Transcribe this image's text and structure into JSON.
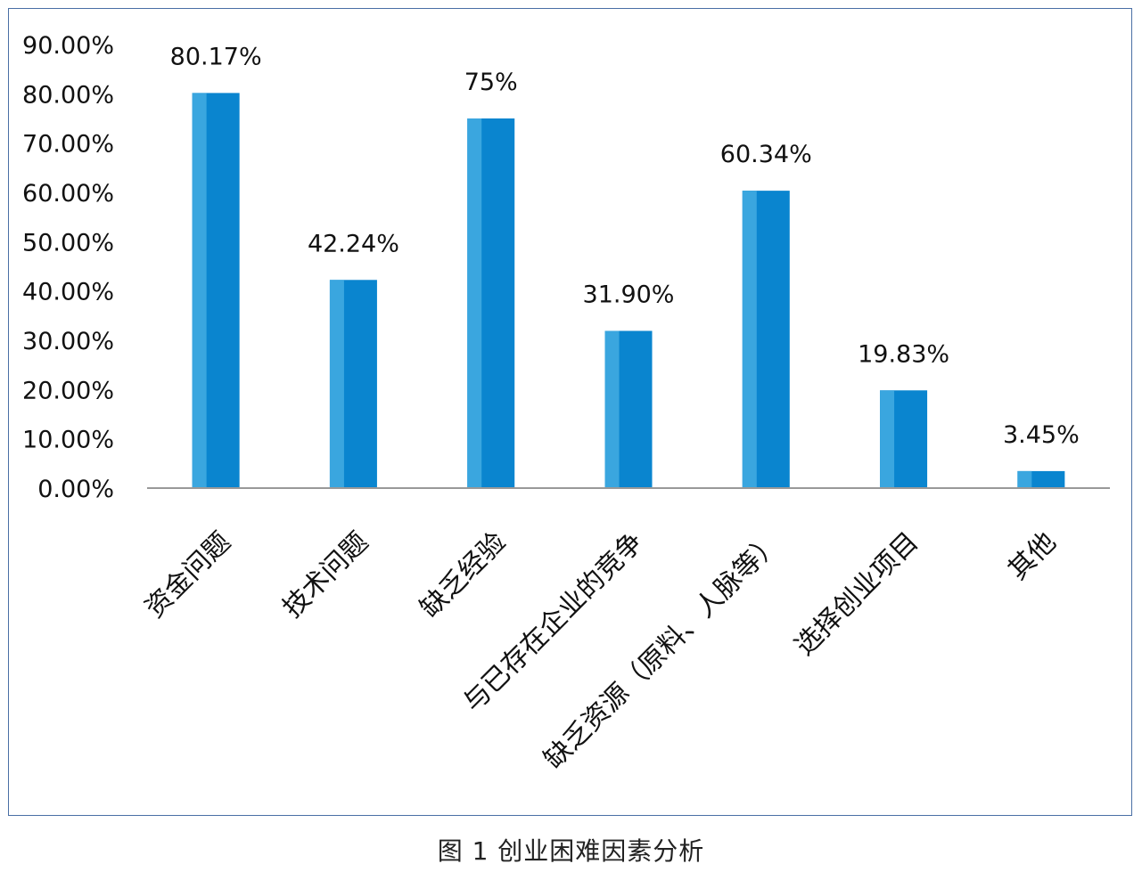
{
  "chart_data": {
    "type": "bar",
    "categories": [
      "资金问题",
      "技术问题",
      "缺乏经验",
      "与已存在企业的竞争",
      "缺乏资源（原料、人脉等）",
      "选择创业项目",
      "其他"
    ],
    "values": [
      80.17,
      42.24,
      75,
      31.9,
      60.34,
      19.83,
      3.45
    ],
    "data_labels": [
      "80.17%",
      "42.24%",
      "75%",
      "31.90%",
      "60.34%",
      "19.83%",
      "3.45%"
    ],
    "y_ticks": [
      0,
      10,
      20,
      30,
      40,
      50,
      60,
      70,
      80,
      90
    ],
    "y_tick_labels": [
      "0.00%",
      "10.00%",
      "20.00%",
      "30.00%",
      "40.00%",
      "50.00%",
      "60.00%",
      "70.00%",
      "80.00%",
      "90.00%"
    ],
    "ylim": [
      0,
      90
    ],
    "grid": false,
    "legend": "none",
    "bar_color": "#0a85cf",
    "bar_highlight_color": "#3aa6df",
    "axis_color": "#999999"
  },
  "caption": "图 1  创业困难因素分析"
}
